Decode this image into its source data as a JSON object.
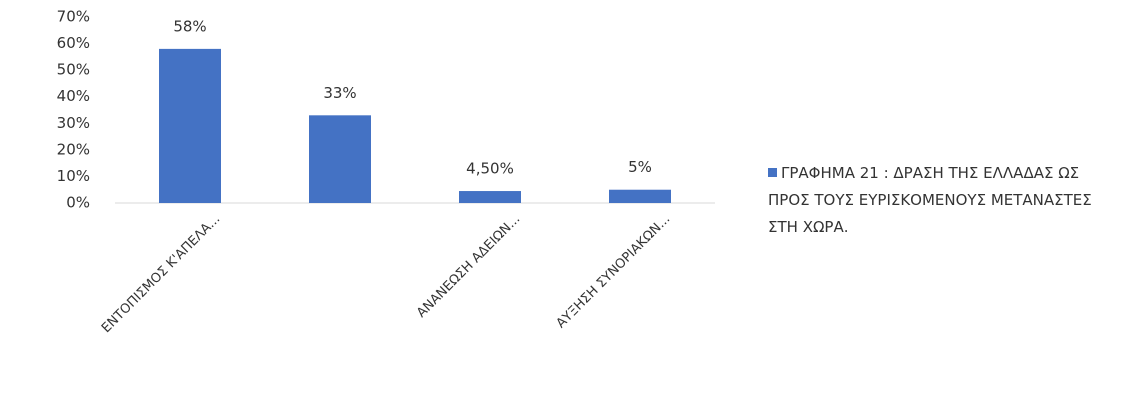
{
  "chart_data": {
    "type": "bar",
    "categories": [
      "ΕΝΤΟΠΙΣΜΟΣ Κ'ΑΠΕΛΑ...",
      null,
      "ΑΝΑΝΕΩΣΗ ΑΔΕΙΩΝ...",
      "ΑΥΞΗΣΗ ΣΥΝΟΡΙΑΚΩΝ..."
    ],
    "series": [
      {
        "name": "ΓΡΑΦΗΜΑ 21 : ΔΡΑΣΗ ΤΗΣ ΕΛΛΑΔΑΣ ΩΣ ΠΡΟΣ ΤΟΥΣ ΕΥΡΙΣΚΟΜΕΝΟΥΣ ΜΕΤΑΝΑΣΤΕΣ ΣΤΗ ΧΩΡΑ.",
        "color": "#4472c4",
        "values": [
          58,
          33,
          4.5,
          5
        ],
        "value_labels": [
          "58%",
          "33%",
          "4,50%",
          "5%"
        ]
      }
    ],
    "ylim": [
      0,
      70
    ],
    "yticks": [
      {
        "value": 0,
        "label": "0%"
      },
      {
        "value": 10,
        "label": "10%"
      },
      {
        "value": 20,
        "label": "20%"
      },
      {
        "value": 30,
        "label": "30%"
      },
      {
        "value": 40,
        "label": "40%"
      },
      {
        "value": 50,
        "label": "50%"
      },
      {
        "value": 60,
        "label": "60%"
      },
      {
        "value": 70,
        "label": "70%"
      }
    ],
    "grid": false,
    "legend": "right"
  }
}
